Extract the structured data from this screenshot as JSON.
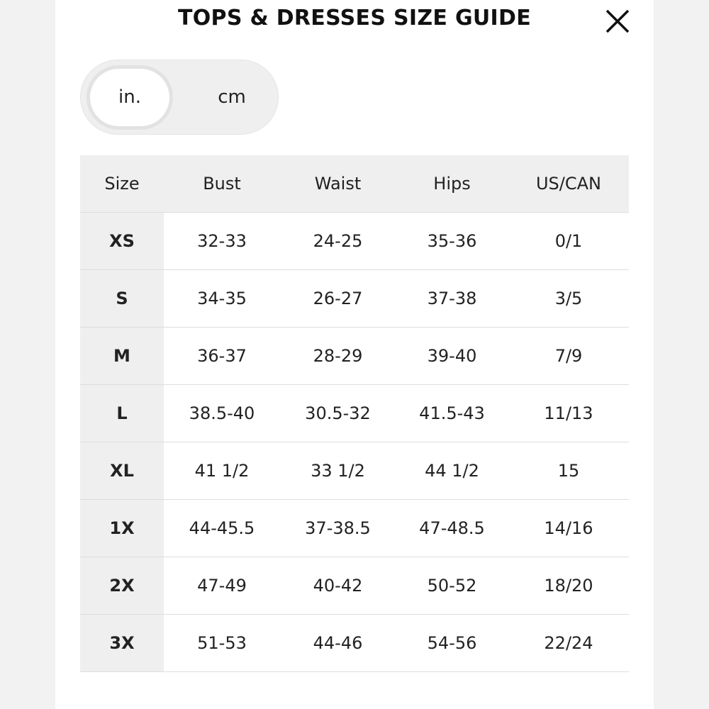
{
  "header": {
    "title": "TOPS & DRESSES SIZE GUIDE"
  },
  "unit_toggle": {
    "options": [
      "in.",
      "cm"
    ]
  },
  "table": {
    "columns": [
      "Size",
      "Bust",
      "Waist",
      "Hips",
      "US/CAN"
    ],
    "rows": [
      [
        "XS",
        "32-33",
        "24-25",
        "35-36",
        "0/1"
      ],
      [
        "S",
        "34-35",
        "26-27",
        "37-38",
        "3/5"
      ],
      [
        "M",
        "36-37",
        "28-29",
        "39-40",
        "7/9"
      ],
      [
        "L",
        "38.5-40",
        "30.5-32",
        "41.5-43",
        "11/13"
      ],
      [
        "XL",
        "41 1/2",
        "33 1/2",
        "44 1/2",
        "15"
      ],
      [
        "1X",
        "44-45.5",
        "37-38.5",
        "47-48.5",
        "14/16"
      ],
      [
        "2X",
        "47-49",
        "40-42",
        "50-52",
        "18/20"
      ],
      [
        "3X",
        "51-53",
        "44-46",
        "54-56",
        "22/24"
      ]
    ]
  }
}
